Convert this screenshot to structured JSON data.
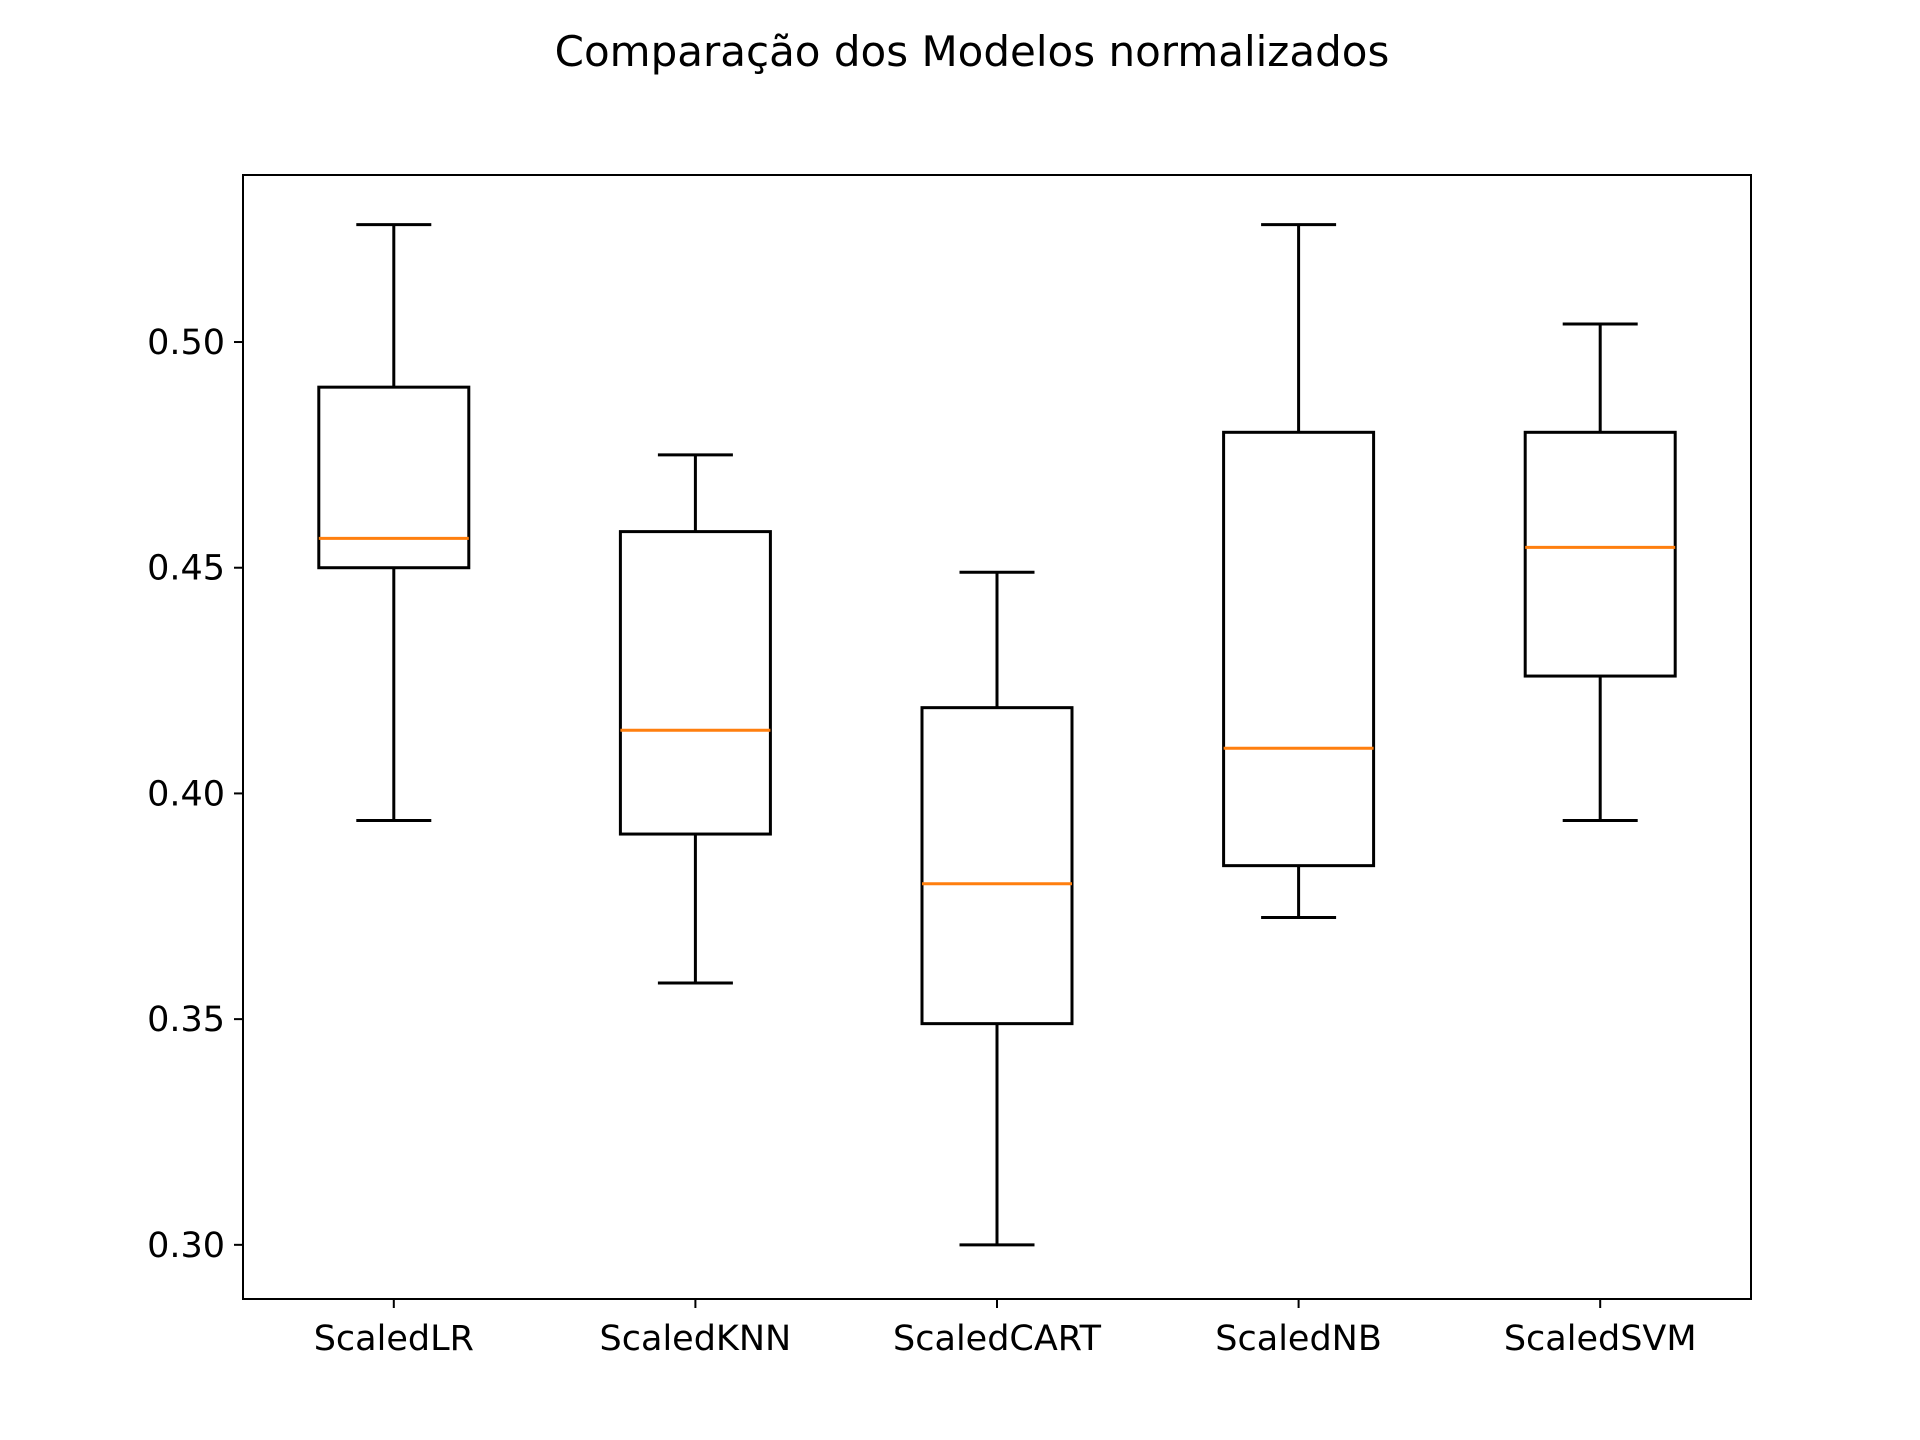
{
  "chart_data": {
    "type": "box",
    "title": "Comparação dos Modelos normalizados",
    "xlabel": "",
    "ylabel": "",
    "ylim": [
      0.288,
      0.537
    ],
    "yticks": [
      0.3,
      0.35,
      0.4,
      0.45,
      0.5
    ],
    "ytick_labels": [
      "0.30",
      "0.35",
      "0.40",
      "0.45",
      "0.50"
    ],
    "grid": false,
    "categories": [
      "ScaledLR",
      "ScaledKNN",
      "ScaledCART",
      "ScaledNB",
      "ScaledSVM"
    ],
    "boxes": [
      {
        "name": "ScaledLR",
        "whisker_low": 0.394,
        "q1": 0.45,
        "median": 0.4565,
        "q3": 0.49,
        "whisker_high": 0.526
      },
      {
        "name": "ScaledKNN",
        "whisker_low": 0.358,
        "q1": 0.391,
        "median": 0.414,
        "q3": 0.458,
        "whisker_high": 0.475
      },
      {
        "name": "ScaledCART",
        "whisker_low": 0.3,
        "q1": 0.349,
        "median": 0.38,
        "q3": 0.419,
        "whisker_high": 0.449
      },
      {
        "name": "ScaledNB",
        "whisker_low": 0.3725,
        "q1": 0.384,
        "median": 0.41,
        "q3": 0.48,
        "whisker_high": 0.526
      },
      {
        "name": "ScaledSVM",
        "whisker_low": 0.394,
        "q1": 0.426,
        "median": 0.4545,
        "q3": 0.48,
        "whisker_high": 0.504
      }
    ],
    "colors": {
      "box": "#000000",
      "median": "#ff7f0e",
      "axis": "#000000"
    }
  }
}
